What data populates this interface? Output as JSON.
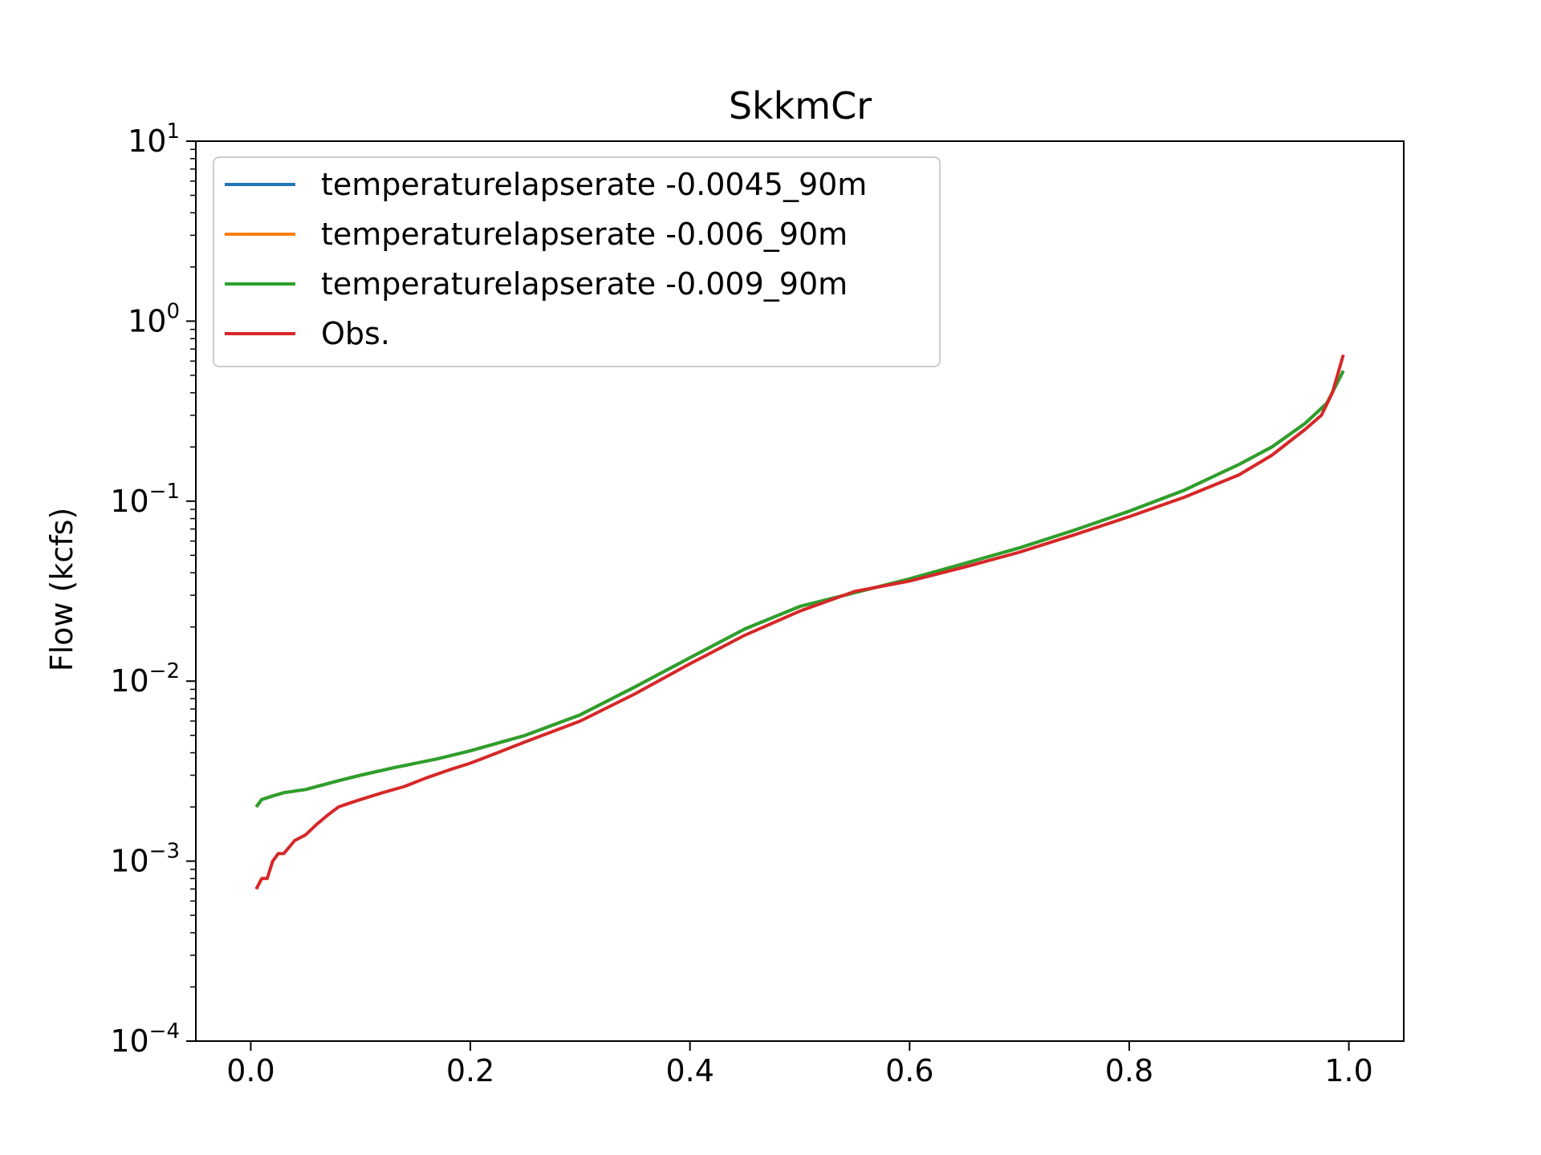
{
  "chart_data": {
    "type": "line",
    "title": "SkkmCr",
    "xlabel": "",
    "ylabel": "Flow (kcfs)",
    "yscale": "log",
    "xlim": [
      -0.05,
      1.05
    ],
    "ylim": [
      0.0001,
      10
    ],
    "grid": false,
    "legend_position": "top-left",
    "x_ticks": [
      "0.0",
      "0.2",
      "0.4",
      "0.6",
      "0.8",
      "1.0"
    ],
    "y_ticks": [
      {
        "value": 0.0001,
        "base": "10",
        "exp": "−4"
      },
      {
        "value": 0.001,
        "base": "10",
        "exp": "−3"
      },
      {
        "value": 0.01,
        "base": "10",
        "exp": "−2"
      },
      {
        "value": 0.1,
        "base": "10",
        "exp": "−1"
      },
      {
        "value": 1,
        "base": "10",
        "exp": "0"
      },
      {
        "value": 10,
        "base": "10",
        "exp": "1"
      }
    ],
    "series": [
      {
        "name": "temperaturelapserate -0.0045_90m",
        "color": "#1f77b4",
        "x": [
          0.005,
          0.01,
          0.02,
          0.03,
          0.05,
          0.08,
          0.1,
          0.13,
          0.17,
          0.2,
          0.25,
          0.3,
          0.35,
          0.4,
          0.45,
          0.5,
          0.55,
          0.6,
          0.65,
          0.7,
          0.75,
          0.8,
          0.85,
          0.9,
          0.93,
          0.96,
          0.98,
          0.995
        ],
        "y": [
          0.002,
          0.0022,
          0.0023,
          0.0024,
          0.0025,
          0.0028,
          0.003,
          0.0033,
          0.0037,
          0.0041,
          0.005,
          0.0065,
          0.0093,
          0.0135,
          0.0195,
          0.026,
          0.031,
          0.037,
          0.045,
          0.055,
          0.069,
          0.088,
          0.115,
          0.16,
          0.2,
          0.27,
          0.35,
          0.53
        ]
      },
      {
        "name": "temperaturelapserate -0.006_90m",
        "color": "#ff7f0e",
        "x": [
          0.005,
          0.01,
          0.02,
          0.03,
          0.05,
          0.08,
          0.1,
          0.13,
          0.17,
          0.2,
          0.25,
          0.3,
          0.35,
          0.4,
          0.45,
          0.5,
          0.55,
          0.6,
          0.65,
          0.7,
          0.75,
          0.8,
          0.85,
          0.9,
          0.93,
          0.96,
          0.98,
          0.995
        ],
        "y": [
          0.002,
          0.0022,
          0.0023,
          0.0024,
          0.0025,
          0.0028,
          0.003,
          0.0033,
          0.0037,
          0.0041,
          0.005,
          0.0065,
          0.0093,
          0.0135,
          0.0195,
          0.026,
          0.031,
          0.037,
          0.045,
          0.055,
          0.069,
          0.088,
          0.115,
          0.16,
          0.2,
          0.27,
          0.35,
          0.53
        ]
      },
      {
        "name": "temperaturelapserate -0.009_90m",
        "color": "#2ca02c",
        "x": [
          0.005,
          0.01,
          0.02,
          0.03,
          0.05,
          0.08,
          0.1,
          0.13,
          0.17,
          0.2,
          0.25,
          0.3,
          0.35,
          0.4,
          0.45,
          0.5,
          0.55,
          0.6,
          0.65,
          0.7,
          0.75,
          0.8,
          0.85,
          0.9,
          0.93,
          0.96,
          0.98,
          0.995
        ],
        "y": [
          0.002,
          0.0022,
          0.0023,
          0.0024,
          0.0025,
          0.0028,
          0.003,
          0.0033,
          0.0037,
          0.0041,
          0.005,
          0.0065,
          0.0093,
          0.0135,
          0.0195,
          0.026,
          0.031,
          0.037,
          0.045,
          0.055,
          0.069,
          0.088,
          0.115,
          0.16,
          0.2,
          0.27,
          0.35,
          0.53
        ]
      },
      {
        "name": "Obs.",
        "color": "#d62728",
        "x": [
          0.005,
          0.01,
          0.015,
          0.02,
          0.025,
          0.03,
          0.04,
          0.05,
          0.06,
          0.07,
          0.08,
          0.09,
          0.1,
          0.12,
          0.14,
          0.16,
          0.18,
          0.2,
          0.22,
          0.25,
          0.3,
          0.35,
          0.4,
          0.45,
          0.5,
          0.55,
          0.6,
          0.65,
          0.7,
          0.75,
          0.8,
          0.85,
          0.9,
          0.93,
          0.96,
          0.975,
          0.985,
          0.995
        ],
        "y": [
          0.0007,
          0.0008,
          0.0008,
          0.001,
          0.0011,
          0.0011,
          0.0013,
          0.0014,
          0.0016,
          0.0018,
          0.002,
          0.0021,
          0.0022,
          0.0024,
          0.0026,
          0.0029,
          0.0032,
          0.0035,
          0.0039,
          0.0046,
          0.006,
          0.0085,
          0.0125,
          0.018,
          0.0245,
          0.0315,
          0.036,
          0.043,
          0.052,
          0.065,
          0.082,
          0.105,
          0.14,
          0.18,
          0.25,
          0.3,
          0.4,
          0.65
        ]
      }
    ]
  }
}
